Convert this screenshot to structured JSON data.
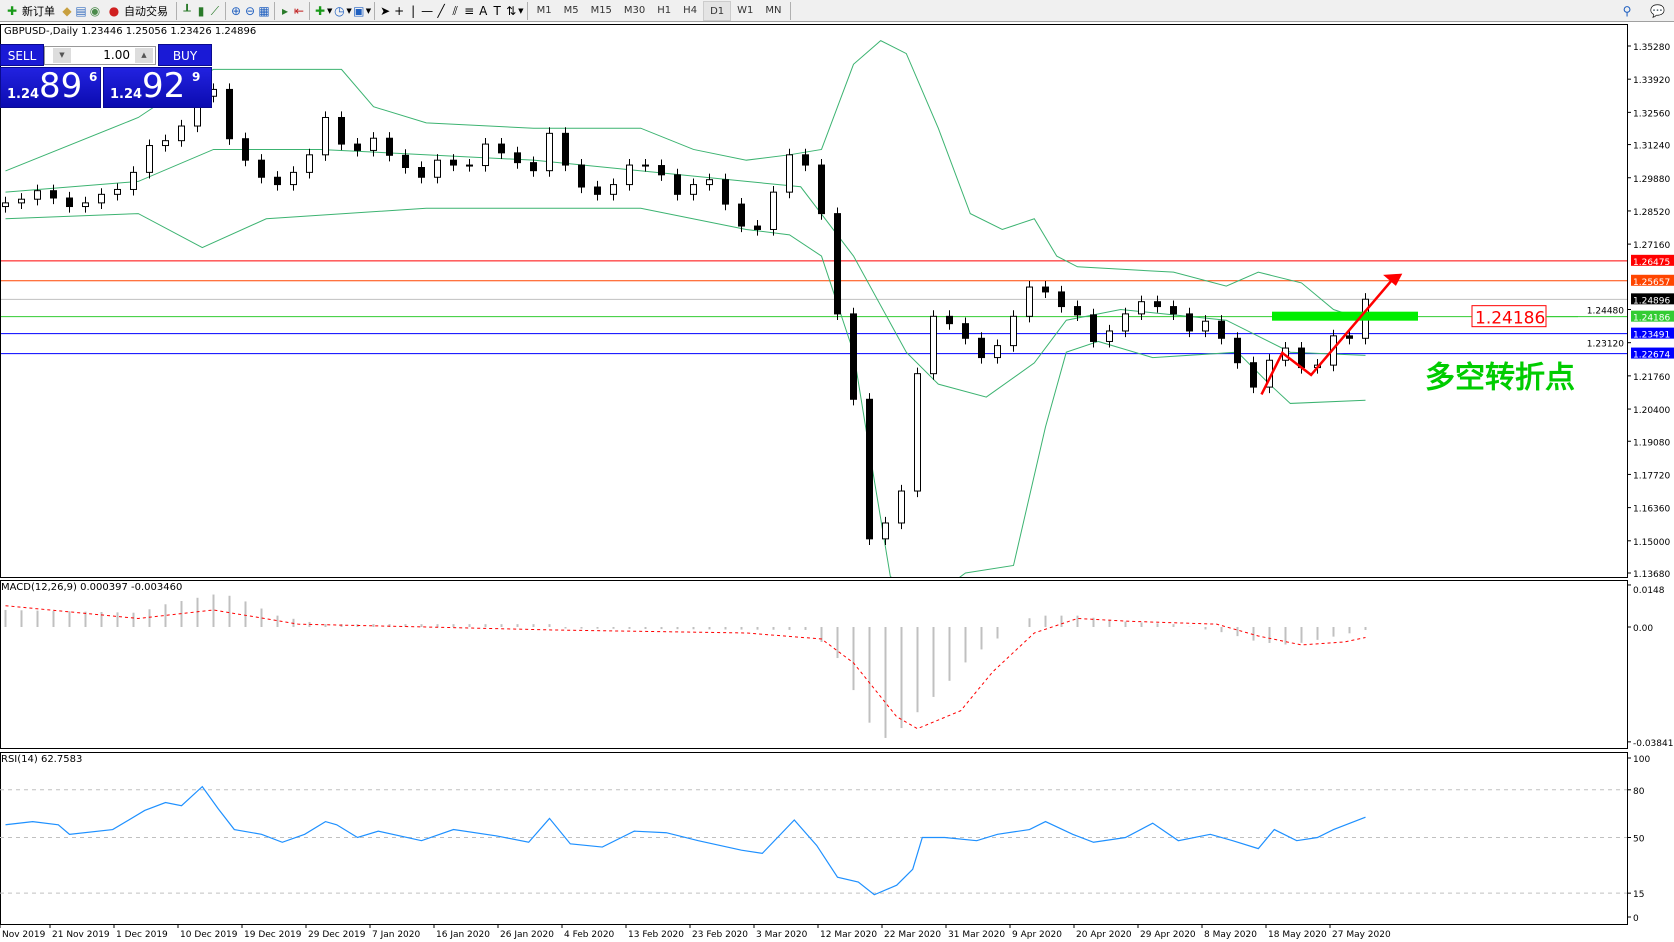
{
  "toolbar": {
    "new_order": "新订单",
    "auto_trading": "自动交易",
    "icons": [
      "new-order-icon",
      "history-icon",
      "navigator-icon",
      "signal-icon",
      "auto-trading-icon",
      "bar-chart-icon",
      "candle-chart-icon",
      "line-chart-icon",
      "zoom-in-icon",
      "zoom-out-icon",
      "tile-icon",
      "autoscroll-icon",
      "chart-shift-icon",
      "indicators-icon",
      "periods-icon",
      "templates-icon",
      "cursor-icon",
      "crosshair-icon",
      "vertical-line-icon",
      "horizontal-line-icon",
      "trendline-icon",
      "equidistant-channel-icon",
      "fibonacci-icon",
      "text-icon",
      "text-label-icon",
      "arrows-icon",
      "search-icon",
      "chat-icon"
    ],
    "timeframes": [
      "M1",
      "M5",
      "M15",
      "M30",
      "H1",
      "H4",
      "D1",
      "W1",
      "MN"
    ],
    "active_timeframe": "D1"
  },
  "symbol_info": "GBPUSD-,Daily  1.23446 1.25056 1.23426 1.24896",
  "trade_panel": {
    "sell": "SELL",
    "buy": "BUY",
    "lot": "1.00",
    "bid": {
      "small": "1.24",
      "big": "89",
      "sup": "6"
    },
    "ask": {
      "small": "1.24",
      "big": "92",
      "sup": "9"
    }
  },
  "indicators": {
    "macd_label": "MACD(12,26,9) 0.000397 -0.003460",
    "rsi_label": "RSI(14) 62.7583"
  },
  "annotation": {
    "price_box": "1.24186",
    "text": "多空转折点",
    "colors": {
      "box": "#ff0000",
      "text": "#00cc00",
      "bar": "#00ee00",
      "arrow": "#ff0000"
    }
  },
  "chart_data": [
    {
      "type": "candlestick",
      "title": "GBPUSD-,Daily",
      "ylim": [
        1.1368,
        1.3528
      ],
      "y_ticks": [
        "1.35280",
        "1.33920",
        "1.32560",
        "1.31240",
        "1.29880",
        "1.28520",
        "1.27160",
        "1.24480",
        "1.23120",
        "1.21760",
        "1.20400",
        "1.19080",
        "1.17720",
        "1.16360",
        "1.15000",
        "1.13680"
      ],
      "x_ticks": [
        "Nov 2019",
        "21 Nov 2019",
        "1 Dec 2019",
        "10 Dec 2019",
        "19 Dec 2019",
        "29 Dec 2019",
        "7 Jan 2020",
        "16 Jan 2020",
        "26 Jan 2020",
        "4 Feb 2020",
        "13 Feb 2020",
        "23 Feb 2020",
        "3 Mar 2020",
        "12 Mar 2020",
        "22 Mar 2020",
        "31 Mar 2020",
        "9 Apr 2020",
        "20 Apr 2020",
        "29 Apr 2020",
        "8 May 2020",
        "18 May 2020",
        "27 May 2020"
      ],
      "first_open": 1.287,
      "closes": [
        1.2885,
        1.29,
        1.2935,
        1.2905,
        1.287,
        1.2885,
        1.292,
        1.294,
        1.301,
        1.312,
        1.314,
        1.32,
        1.3322,
        1.335,
        1.3148,
        1.306,
        1.299,
        1.296,
        1.301,
        1.3082,
        1.3235,
        1.3126,
        1.31,
        1.315,
        1.308,
        1.303,
        1.299,
        1.306,
        1.304,
        1.3038,
        1.3126,
        1.309,
        1.305,
        1.3017,
        1.317,
        1.304,
        1.295,
        1.292,
        1.296,
        1.304,
        1.3038,
        1.3,
        1.292,
        1.296,
        1.298,
        1.288,
        1.279,
        1.2776,
        1.2929,
        1.3082,
        1.304,
        1.2841,
        1.243,
        1.208,
        1.1508,
        1.1573,
        1.1704,
        1.2185,
        1.242,
        1.239,
        1.233,
        1.2251,
        1.23,
        1.242,
        1.254,
        1.252,
        1.246,
        1.2426,
        1.2317,
        1.236,
        1.243,
        1.248,
        1.246,
        1.243,
        1.236,
        1.24,
        1.233,
        1.223,
        1.213,
        1.224,
        1.229,
        1.221,
        1.222,
        1.234,
        1.233,
        1.249
      ],
      "bollinger": {
        "upper": [
          [
            0,
            1.3016
          ],
          [
            8.3,
            1.3235
          ],
          [
            12.3,
            1.341
          ],
          [
            13,
            1.3432
          ],
          [
            21,
            1.3432
          ],
          [
            23,
            1.3279
          ],
          [
            26.3,
            1.3213
          ],
          [
            33,
            1.3191
          ],
          [
            39.7,
            1.3191
          ],
          [
            43,
            1.3104
          ],
          [
            46.3,
            1.306
          ],
          [
            49,
            1.3082
          ],
          [
            51,
            1.3104
          ],
          [
            53,
            1.3453
          ],
          [
            54.7,
            1.355
          ],
          [
            56.3,
            1.3497
          ],
          [
            58.3,
            1.3191
          ],
          [
            60.3,
            1.2841
          ],
          [
            62.3,
            1.2776
          ],
          [
            64.3,
            1.282
          ],
          [
            65.7,
            1.2667
          ],
          [
            67,
            1.2623
          ],
          [
            73,
            1.2601
          ],
          [
            76.3,
            1.2544
          ],
          [
            78.3,
            1.2601
          ],
          [
            81,
            1.2557
          ],
          [
            83,
            1.2448
          ],
          [
            85,
            1.2404
          ]
        ],
        "middle": [
          [
            0,
            1.2929
          ],
          [
            8.3,
            1.2973
          ],
          [
            13,
            1.3104
          ],
          [
            19.7,
            1.3104
          ],
          [
            33,
            1.306
          ],
          [
            46.3,
            1.2973
          ],
          [
            49.7,
            1.2951
          ],
          [
            53,
            1.2667
          ],
          [
            56.3,
            1.2273
          ],
          [
            58.3,
            1.2142
          ],
          [
            61.3,
            1.2089
          ],
          [
            64.3,
            1.2229
          ],
          [
            66.3,
            1.2404
          ],
          [
            69.7,
            1.2448
          ],
          [
            76.3,
            1.2404
          ],
          [
            80.3,
            1.2273
          ],
          [
            85,
            1.226
          ]
        ],
        "lower": [
          [
            0,
            1.282
          ],
          [
            8.3,
            1.2841
          ],
          [
            12.3,
            1.2702
          ],
          [
            16.3,
            1.282
          ],
          [
            26.3,
            1.2863
          ],
          [
            39.7,
            1.2863
          ],
          [
            46.3,
            1.2776
          ],
          [
            49,
            1.2754
          ],
          [
            51,
            1.2667
          ],
          [
            53,
            1.2273
          ],
          [
            54.3,
            1.1748
          ],
          [
            55.3,
            1.1355
          ],
          [
            57,
            1.1224
          ],
          [
            60,
            1.1368
          ],
          [
            63,
            1.1399
          ],
          [
            65,
            1.1967
          ],
          [
            66.3,
            1.2273
          ],
          [
            68.3,
            1.2317
          ],
          [
            71.7,
            1.2251
          ],
          [
            77,
            1.2273
          ],
          [
            79,
            1.2142
          ],
          [
            80.3,
            1.2063
          ],
          [
            85,
            1.2076
          ]
        ],
        "color": "#3cb371"
      },
      "levels": [
        {
          "price": "1.26475",
          "color": "#ff0000"
        },
        {
          "price": "1.25657",
          "color": "#ff4500"
        },
        {
          "price": "1.24896",
          "color": "#000000",
          "line": "#c0c0c0"
        },
        {
          "price": "1.24186",
          "color": "#33cc33"
        },
        {
          "price": "1.23491",
          "color": "#0000ff"
        },
        {
          "price": "1.22674",
          "color": "#0000ff"
        }
      ]
    },
    {
      "type": "bar+line",
      "name": "MACD(12,26,9)",
      "ylim": [
        -0.038415,
        0.0148
      ],
      "y_ticks": [
        "0.0148",
        "0.00",
        "-0.038415"
      ],
      "histogram": [
        [
          0,
          0.006
        ],
        [
          8.3,
          0.005
        ],
        [
          10,
          0.008
        ],
        [
          13.5,
          0.012
        ],
        [
          15,
          0.009
        ],
        [
          17,
          0.004
        ],
        [
          19.7,
          0.001
        ],
        [
          34.3,
          0.001
        ],
        [
          35,
          -0.0005
        ],
        [
          50.3,
          -0.001
        ],
        [
          51,
          -0.005
        ],
        [
          52.3,
          -0.012
        ],
        [
          53.3,
          -0.025
        ],
        [
          54.3,
          -0.035
        ],
        [
          55.3,
          -0.038
        ],
        [
          56.3,
          -0.032
        ],
        [
          57.7,
          -0.025
        ],
        [
          59,
          -0.018
        ],
        [
          60.3,
          -0.01
        ],
        [
          61.7,
          -0.005
        ],
        [
          63,
          0
        ],
        [
          64.3,
          0.004
        ],
        [
          67,
          0.004
        ],
        [
          69.7,
          0.002
        ],
        [
          73,
          0.001
        ],
        [
          76.3,
          -0.002
        ],
        [
          78.3,
          -0.005
        ],
        [
          80.3,
          -0.006
        ],
        [
          82.3,
          -0.004
        ],
        [
          85,
          -0.001
        ]
      ],
      "signal": [
        [
          0,
          0.0075
        ],
        [
          8.3,
          0.003
        ],
        [
          13,
          0.006
        ],
        [
          18.3,
          0.001
        ],
        [
          26.3,
          0
        ],
        [
          34.3,
          -0.001
        ],
        [
          46.3,
          -0.002
        ],
        [
          51,
          -0.004
        ],
        [
          53,
          -0.012
        ],
        [
          55.7,
          -0.03
        ],
        [
          57,
          -0.034
        ],
        [
          59.7,
          -0.028
        ],
        [
          61.7,
          -0.015
        ],
        [
          64.3,
          -0.002
        ],
        [
          67,
          0.003
        ],
        [
          70.3,
          0.002
        ],
        [
          75.7,
          0.001
        ],
        [
          78.3,
          -0.003
        ],
        [
          81,
          -0.006
        ],
        [
          83.7,
          -0.005
        ],
        [
          85,
          -0.0035
        ]
      ],
      "colors": {
        "histogram": "#c0c0c0",
        "signal": "#ff0000"
      }
    },
    {
      "type": "line",
      "name": "RSI(14)",
      "ylim": [
        0,
        100
      ],
      "y_ticks": [
        "100",
        "80",
        "50",
        "15",
        "0"
      ],
      "levels": [
        80,
        50,
        15
      ],
      "values": [
        [
          0,
          58
        ],
        [
          1.7,
          60
        ],
        [
          3.3,
          58
        ],
        [
          4,
          52
        ],
        [
          6.7,
          55
        ],
        [
          8.7,
          67
        ],
        [
          10,
          72
        ],
        [
          11,
          70
        ],
        [
          12.3,
          82
        ],
        [
          13.3,
          68
        ],
        [
          14.3,
          55
        ],
        [
          16,
          52
        ],
        [
          17.3,
          47
        ],
        [
          18.7,
          52
        ],
        [
          20,
          60
        ],
        [
          20.7,
          58
        ],
        [
          22,
          50
        ],
        [
          23.3,
          54
        ],
        [
          26,
          48
        ],
        [
          28,
          55
        ],
        [
          30.7,
          51
        ],
        [
          32.7,
          47
        ],
        [
          34,
          62
        ],
        [
          35.3,
          46
        ],
        [
          37.3,
          44
        ],
        [
          39.3,
          54
        ],
        [
          41.3,
          53
        ],
        [
          43.3,
          48
        ],
        [
          46,
          42
        ],
        [
          47.3,
          40
        ],
        [
          49.3,
          61
        ],
        [
          50.7,
          45
        ],
        [
          52,
          25
        ],
        [
          53.3,
          22
        ],
        [
          54.3,
          14
        ],
        [
          55.7,
          20
        ],
        [
          56.7,
          30
        ],
        [
          57.3,
          50
        ],
        [
          58.7,
          50
        ],
        [
          60.7,
          48
        ],
        [
          62,
          52
        ],
        [
          64,
          55
        ],
        [
          65,
          60
        ],
        [
          66.7,
          52
        ],
        [
          68,
          47
        ],
        [
          70,
          50
        ],
        [
          71.7,
          59
        ],
        [
          73.3,
          48
        ],
        [
          75.3,
          52
        ],
        [
          76.7,
          48
        ],
        [
          78.3,
          43
        ],
        [
          79.3,
          55
        ],
        [
          80.7,
          48
        ],
        [
          82,
          50
        ],
        [
          83,
          55
        ],
        [
          85,
          62.76
        ]
      ],
      "color": "#1e90ff"
    }
  ]
}
